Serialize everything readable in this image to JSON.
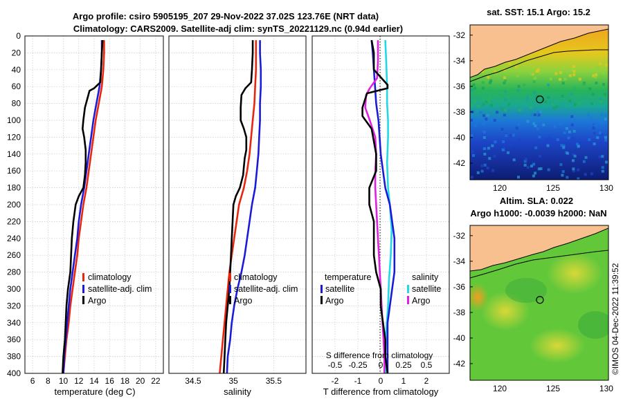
{
  "titles": {
    "main_line1": "Argo profile: csiro 5905195_207 29-Nov-2022 37.02S 123.76E (NRT data)",
    "main_line2": "Climatology: CARS2009. Satellite-adj clim: synTS_20221129.nc (0.94d earlier)",
    "sst_map": "sat. SST: 15.1 Argo: 15.2",
    "sla_map_line1": "Altim. SLA: 0.022",
    "sla_map_line2": "Argo h1000: -0.0039 h2000: NaN"
  },
  "stamp": "©IMOS 04-Dec-2022 11:39:52",
  "depth_ticks": [
    "0",
    "20",
    "40",
    "60",
    "80",
    "100",
    "120",
    "140",
    "160",
    "180",
    "200",
    "220",
    "240",
    "260",
    "280",
    "300",
    "320",
    "340",
    "360",
    "380",
    "400"
  ],
  "colors": {
    "climatology": "#e8250f",
    "satellite": "#1a1ad8",
    "argo": "#000000",
    "temp": "#1a1ad8",
    "sat_salinity": "#22d8e6",
    "argo_salinity": "#e020e0"
  },
  "chart_data": [
    {
      "type": "line",
      "panel": "temperature",
      "xlabel": "temperature (deg C)",
      "ylabel": "depth",
      "xlim": [
        5,
        23
      ],
      "ylim": [
        0,
        400
      ],
      "xticks": [
        "6",
        "8",
        "10",
        "12",
        "14",
        "16",
        "18",
        "20",
        "22"
      ],
      "legend": [
        "climatology",
        "satellite-adj. clim",
        "Argo"
      ],
      "series": [
        {
          "name": "climatology",
          "values": [
            [
              15.3,
              5
            ],
            [
              15.3,
              20
            ],
            [
              15.2,
              40
            ],
            [
              15.0,
              60
            ],
            [
              14.6,
              80
            ],
            [
              14.2,
              100
            ],
            [
              13.9,
              120
            ],
            [
              13.6,
              140
            ],
            [
              13.3,
              160
            ],
            [
              13.0,
              180
            ],
            [
              12.6,
              200
            ],
            [
              12.3,
              220
            ],
            [
              12.0,
              240
            ],
            [
              11.8,
              260
            ],
            [
              11.5,
              280
            ],
            [
              11.2,
              300
            ],
            [
              10.9,
              320
            ],
            [
              10.7,
              340
            ],
            [
              10.4,
              360
            ],
            [
              10.2,
              380
            ],
            [
              10.0,
              400
            ]
          ]
        },
        {
          "name": "satellite-adj. clim",
          "values": [
            [
              15.0,
              5
            ],
            [
              15.0,
              20
            ],
            [
              14.9,
              40
            ],
            [
              14.7,
              60
            ],
            [
              14.3,
              80
            ],
            [
              13.9,
              100
            ],
            [
              13.6,
              120
            ],
            [
              13.3,
              140
            ],
            [
              13.0,
              160
            ],
            [
              12.7,
              180
            ],
            [
              12.3,
              200
            ],
            [
              12.0,
              220
            ],
            [
              11.8,
              240
            ],
            [
              11.5,
              260
            ],
            [
              11.2,
              280
            ],
            [
              10.9,
              300
            ],
            [
              10.7,
              320
            ],
            [
              10.5,
              340
            ],
            [
              10.3,
              360
            ],
            [
              10.1,
              380
            ],
            [
              10.0,
              400
            ]
          ]
        },
        {
          "name": "Argo",
          "values": [
            [
              15.1,
              5
            ],
            [
              15.0,
              20
            ],
            [
              14.9,
              40
            ],
            [
              14.8,
              55
            ],
            [
              14.0,
              62
            ],
            [
              13.4,
              65
            ],
            [
              13.1,
              75
            ],
            [
              12.8,
              85
            ],
            [
              12.6,
              100
            ],
            [
              12.5,
              110
            ],
            [
              12.7,
              120
            ],
            [
              12.9,
              135
            ],
            [
              12.9,
              150
            ],
            [
              12.8,
              165
            ],
            [
              12.6,
              180
            ],
            [
              12.0,
              190
            ],
            [
              11.6,
              200
            ],
            [
              11.3,
              220
            ],
            [
              11.1,
              240
            ],
            [
              11.0,
              260
            ],
            [
              10.9,
              280
            ],
            [
              10.6,
              300
            ],
            [
              10.4,
              320
            ],
            [
              10.3,
              340
            ],
            [
              10.2,
              360
            ],
            [
              10.0,
              380
            ],
            [
              9.9,
              400
            ]
          ]
        }
      ]
    },
    {
      "type": "line",
      "panel": "salinity",
      "xlabel": "salinity",
      "xlim": [
        34.2,
        35.9
      ],
      "ylim": [
        0,
        400
      ],
      "xticks": [
        "34.5",
        "35",
        "35.5"
      ],
      "legend": [
        "climatology",
        "satellite-adj. clim",
        "Argo"
      ],
      "series": [
        {
          "name": "climatology",
          "values": [
            [
              35.28,
              5
            ],
            [
              35.28,
              20
            ],
            [
              35.28,
              40
            ],
            [
              35.27,
              60
            ],
            [
              35.26,
              80
            ],
            [
              35.24,
              100
            ],
            [
              35.22,
              120
            ],
            [
              35.2,
              140
            ],
            [
              35.17,
              160
            ],
            [
              35.13,
              180
            ],
            [
              35.07,
              200
            ],
            [
              35.04,
              220
            ],
            [
              35.01,
              240
            ],
            [
              34.98,
              260
            ],
            [
              34.95,
              280
            ],
            [
              34.93,
              300
            ],
            [
              34.91,
              320
            ],
            [
              34.89,
              340
            ],
            [
              34.87,
              360
            ],
            [
              34.85,
              380
            ],
            [
              34.83,
              400
            ]
          ]
        },
        {
          "name": "satellite-adj. clim",
          "values": [
            [
              35.33,
              5
            ],
            [
              35.33,
              20
            ],
            [
              35.34,
              40
            ],
            [
              35.34,
              60
            ],
            [
              35.33,
              80
            ],
            [
              35.33,
              100
            ],
            [
              35.32,
              120
            ],
            [
              35.31,
              140
            ],
            [
              35.29,
              160
            ],
            [
              35.27,
              180
            ],
            [
              35.23,
              200
            ],
            [
              35.2,
              220
            ],
            [
              35.17,
              240
            ],
            [
              35.14,
              260
            ],
            [
              35.1,
              280
            ],
            [
              35.05,
              300
            ],
            [
              35.01,
              320
            ],
            [
              34.98,
              340
            ],
            [
              34.96,
              360
            ],
            [
              34.93,
              380
            ],
            [
              34.92,
              400
            ]
          ]
        },
        {
          "name": "Argo",
          "values": [
            [
              35.24,
              5
            ],
            [
              35.24,
              20
            ],
            [
              35.23,
              40
            ],
            [
              35.22,
              55
            ],
            [
              35.15,
              62
            ],
            [
              35.1,
              70
            ],
            [
              35.09,
              85
            ],
            [
              35.09,
              100
            ],
            [
              35.13,
              110
            ],
            [
              35.16,
              120
            ],
            [
              35.16,
              135
            ],
            [
              35.14,
              145
            ],
            [
              35.13,
              155
            ],
            [
              35.12,
              165
            ],
            [
              35.08,
              180
            ],
            [
              35.03,
              190
            ],
            [
              35.0,
              200
            ],
            [
              34.99,
              220
            ],
            [
              34.98,
              240
            ],
            [
              34.97,
              260
            ],
            [
              34.96,
              280
            ],
            [
              34.95,
              300
            ],
            [
              34.93,
              320
            ],
            [
              34.91,
              340
            ],
            [
              34.9,
              360
            ],
            [
              34.89,
              380
            ],
            [
              34.88,
              400
            ]
          ]
        }
      ]
    },
    {
      "type": "line",
      "panel": "difference",
      "xlabel": "T difference from climatology",
      "xlabel_top": "S difference from climatology",
      "xlim": [
        -3,
        3
      ],
      "ylim": [
        0,
        400
      ],
      "xticks": [
        "-2",
        "-1",
        "0",
        "1",
        "2"
      ],
      "xticks_top": [
        "-0.5",
        "-0.25",
        "0",
        "0.25",
        "0.5"
      ],
      "legend_temperature": [
        "temperature",
        "satellite",
        "Argo"
      ],
      "legend_salinity": [
        "salinity",
        "satellite",
        "Argo"
      ],
      "series": [
        {
          "name": "temperature satellite",
          "values": [
            [
              -0.4,
              5
            ],
            [
              -0.35,
              20
            ],
            [
              -0.3,
              40
            ],
            [
              -0.25,
              60
            ],
            [
              -0.2,
              80
            ],
            [
              -0.1,
              100
            ],
            [
              -0.05,
              120
            ],
            [
              0.0,
              140
            ],
            [
              0.1,
              160
            ],
            [
              0.2,
              180
            ],
            [
              0.4,
              200
            ],
            [
              0.5,
              220
            ],
            [
              0.6,
              240
            ],
            [
              0.6,
              260
            ],
            [
              0.6,
              280
            ],
            [
              0.5,
              300
            ],
            [
              0.4,
              320
            ],
            [
              0.3,
              340
            ],
            [
              0.3,
              360
            ],
            [
              0.3,
              380
            ],
            [
              0.3,
              400
            ]
          ]
        },
        {
          "name": "temperature Argo",
          "values": [
            [
              -0.4,
              5
            ],
            [
              -0.3,
              20
            ],
            [
              -0.3,
              40
            ],
            [
              0.3,
              58
            ],
            [
              0.3,
              62
            ],
            [
              -0.6,
              68
            ],
            [
              -0.8,
              85
            ],
            [
              -0.8,
              95
            ],
            [
              -0.4,
              110
            ],
            [
              -0.3,
              125
            ],
            [
              -0.2,
              140
            ],
            [
              -0.2,
              160
            ],
            [
              -0.5,
              180
            ],
            [
              -0.5,
              200
            ],
            [
              -0.3,
              220
            ],
            [
              -0.3,
              240
            ],
            [
              -0.3,
              260
            ],
            [
              -0.2,
              280
            ],
            [
              0.0,
              300
            ],
            [
              0.0,
              320
            ],
            [
              0.1,
              340
            ],
            [
              0.2,
              360
            ],
            [
              0.2,
              380
            ],
            [
              0.3,
              400
            ]
          ]
        },
        {
          "name": "salinity satellite",
          "values": [
            [
              0.05,
              5
            ],
            [
              0.06,
              30
            ],
            [
              0.07,
              60
            ],
            [
              0.07,
              80
            ],
            [
              0.08,
              100
            ],
            [
              0.08,
              120
            ],
            [
              0.07,
              150
            ],
            [
              0.08,
              180
            ],
            [
              0.1,
              200
            ],
            [
              0.12,
              230
            ],
            [
              0.11,
              260
            ],
            [
              0.09,
              290
            ],
            [
              0.08,
              320
            ],
            [
              0.06,
              350
            ],
            [
              0.05,
              380
            ],
            [
              0.06,
              400
            ]
          ]
        },
        {
          "name": "salinity Argo",
          "values": [
            [
              -0.03,
              5
            ],
            [
              -0.03,
              30
            ],
            [
              -0.04,
              50
            ],
            [
              -0.12,
              62
            ],
            [
              -0.16,
              70
            ],
            [
              -0.17,
              85
            ],
            [
              -0.12,
              100
            ],
            [
              -0.06,
              120
            ],
            [
              -0.05,
              140
            ],
            [
              -0.06,
              160
            ],
            [
              -0.06,
              180
            ],
            [
              -0.05,
              200
            ],
            [
              -0.04,
              220
            ],
            [
              -0.03,
              240
            ],
            [
              -0.02,
              260
            ],
            [
              -0.01,
              280
            ],
            [
              0.0,
              300
            ],
            [
              0.01,
              320
            ],
            [
              0.02,
              340
            ],
            [
              0.03,
              360
            ],
            [
              0.04,
              380
            ],
            [
              0.04,
              400
            ]
          ]
        }
      ]
    },
    {
      "type": "heatmap",
      "panel": "sst_map",
      "title": "sat. SST: 15.1 Argo: 15.2",
      "xlim": [
        117.2,
        130.2
      ],
      "ylim": [
        -43.3,
        -31.2
      ],
      "xticks": [
        "120",
        "125",
        "130"
      ],
      "yticks": [
        "-32",
        "-34",
        "-36",
        "-38",
        "-40",
        "-42"
      ],
      "argo_position": {
        "lon": 123.76,
        "lat": -37.02
      }
    },
    {
      "type": "heatmap",
      "panel": "sla_map",
      "title": "Altim. SLA: 0.022",
      "subtitle": "Argo h1000: -0.0039 h2000: NaN",
      "xlim": [
        117.2,
        130.2
      ],
      "ylim": [
        -43.3,
        -31.2
      ],
      "xticks": [
        "120",
        "125",
        "130"
      ],
      "yticks": [
        "-32",
        "-34",
        "-36",
        "-38",
        "-40",
        "-42"
      ],
      "argo_position": {
        "lon": 123.76,
        "lat": -37.02
      }
    }
  ]
}
